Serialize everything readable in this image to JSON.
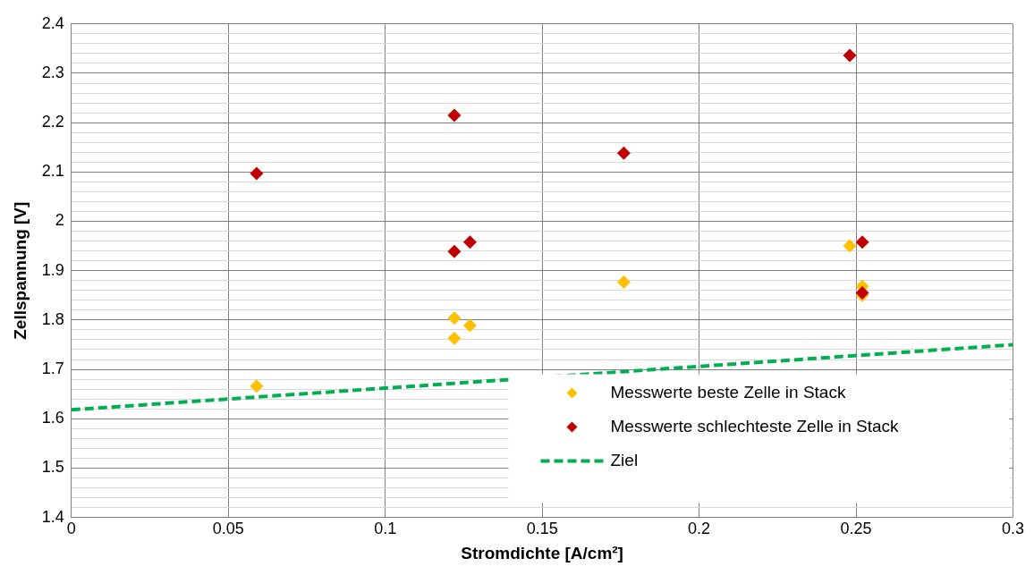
{
  "chart_data": {
    "type": "scatter",
    "xlabel": "Stromdichte [A/cm²]",
    "ylabel": "Zellspannung [V]",
    "xlim": [
      0,
      0.3
    ],
    "xticks": [
      0,
      0.05,
      0.1,
      0.15,
      0.2,
      0.25,
      0.3
    ],
    "ylim": [
      1.4,
      2.4
    ],
    "yticks": [
      1.4,
      {
        "value": 1.42,
        "label": null
      },
      {
        "value": 1.44,
        "label": null
      },
      {
        "value": 1.46,
        "label": null
      },
      {
        "value": 1.48,
        "label": null
      },
      1.5,
      {
        "value": 1.52,
        "label": null
      },
      {
        "value": 1.54,
        "label": null
      },
      {
        "value": 1.56,
        "label": null
      },
      {
        "value": 1.58,
        "label": null
      },
      1.6,
      {
        "value": 1.62,
        "label": null
      },
      {
        "value": 1.64,
        "label": null
      },
      {
        "value": 1.66,
        "label": null
      },
      {
        "value": 1.68,
        "label": null
      },
      1.7,
      {
        "value": 1.72,
        "label": null
      },
      {
        "value": 1.74,
        "label": null
      },
      {
        "value": 1.76,
        "label": null
      },
      {
        "value": 1.78,
        "label": null
      },
      1.8,
      {
        "value": 1.82,
        "label": null
      },
      {
        "value": 1.84,
        "label": null
      },
      {
        "value": 1.86,
        "label": null
      },
      {
        "value": 1.88,
        "label": null
      },
      1.9,
      {
        "value": 1.92,
        "label": null
      },
      {
        "value": 1.94,
        "label": null
      },
      {
        "value": 1.96,
        "label": null
      },
      {
        "value": 1.98,
        "label": null
      },
      2,
      {
        "value": 2.02,
        "label": null
      },
      {
        "value": 2.04,
        "label": null
      },
      {
        "value": 2.06,
        "label": null
      },
      {
        "value": 2.08,
        "label": null
      },
      2.1,
      {
        "value": 2.12,
        "label": null
      },
      {
        "value": 2.14,
        "label": null
      },
      {
        "value": 2.16,
        "label": null
      },
      {
        "value": 2.18,
        "label": null
      },
      2.2,
      {
        "value": 2.22,
        "label": null
      },
      {
        "value": 2.24,
        "label": null
      },
      {
        "value": 2.26,
        "label": null
      },
      {
        "value": 2.28,
        "label": null
      },
      2.3,
      {
        "value": 2.32,
        "label": null
      },
      {
        "value": 2.34,
        "label": null
      },
      {
        "value": 2.36,
        "label": null
      },
      {
        "value": 2.38,
        "label": null
      },
      2.4
    ],
    "grid": true,
    "legend": "bottom right",
    "marker": "diamond",
    "series": [
      {
        "name": "Messwerte beste Zelle in Stack",
        "color": "#ffc000",
        "x": [
          0.059,
          0.122,
          0.122,
          0.127,
          0.176,
          0.248,
          0.252,
          0.252
        ],
        "values": [
          1.666,
          1.804,
          1.763,
          1.789,
          1.877,
          1.95,
          1.868,
          1.85
        ]
      },
      {
        "name": "Messwerte schlechteste Zelle in Stack",
        "color": "#c00000",
        "x": [
          0.059,
          0.122,
          0.122,
          0.127,
          0.176,
          0.248,
          0.252,
          0.252
        ],
        "values": [
          2.097,
          2.215,
          1.939,
          1.958,
          2.138,
          2.336,
          1.958,
          1.855
        ]
      },
      {
        "name": "Ziel",
        "type": "line",
        "color": "#00b050",
        "line_style": "dashed",
        "marker": "none",
        "x": [
          0,
          0.3
        ],
        "values": [
          1.618,
          1.75
        ]
      }
    ]
  }
}
